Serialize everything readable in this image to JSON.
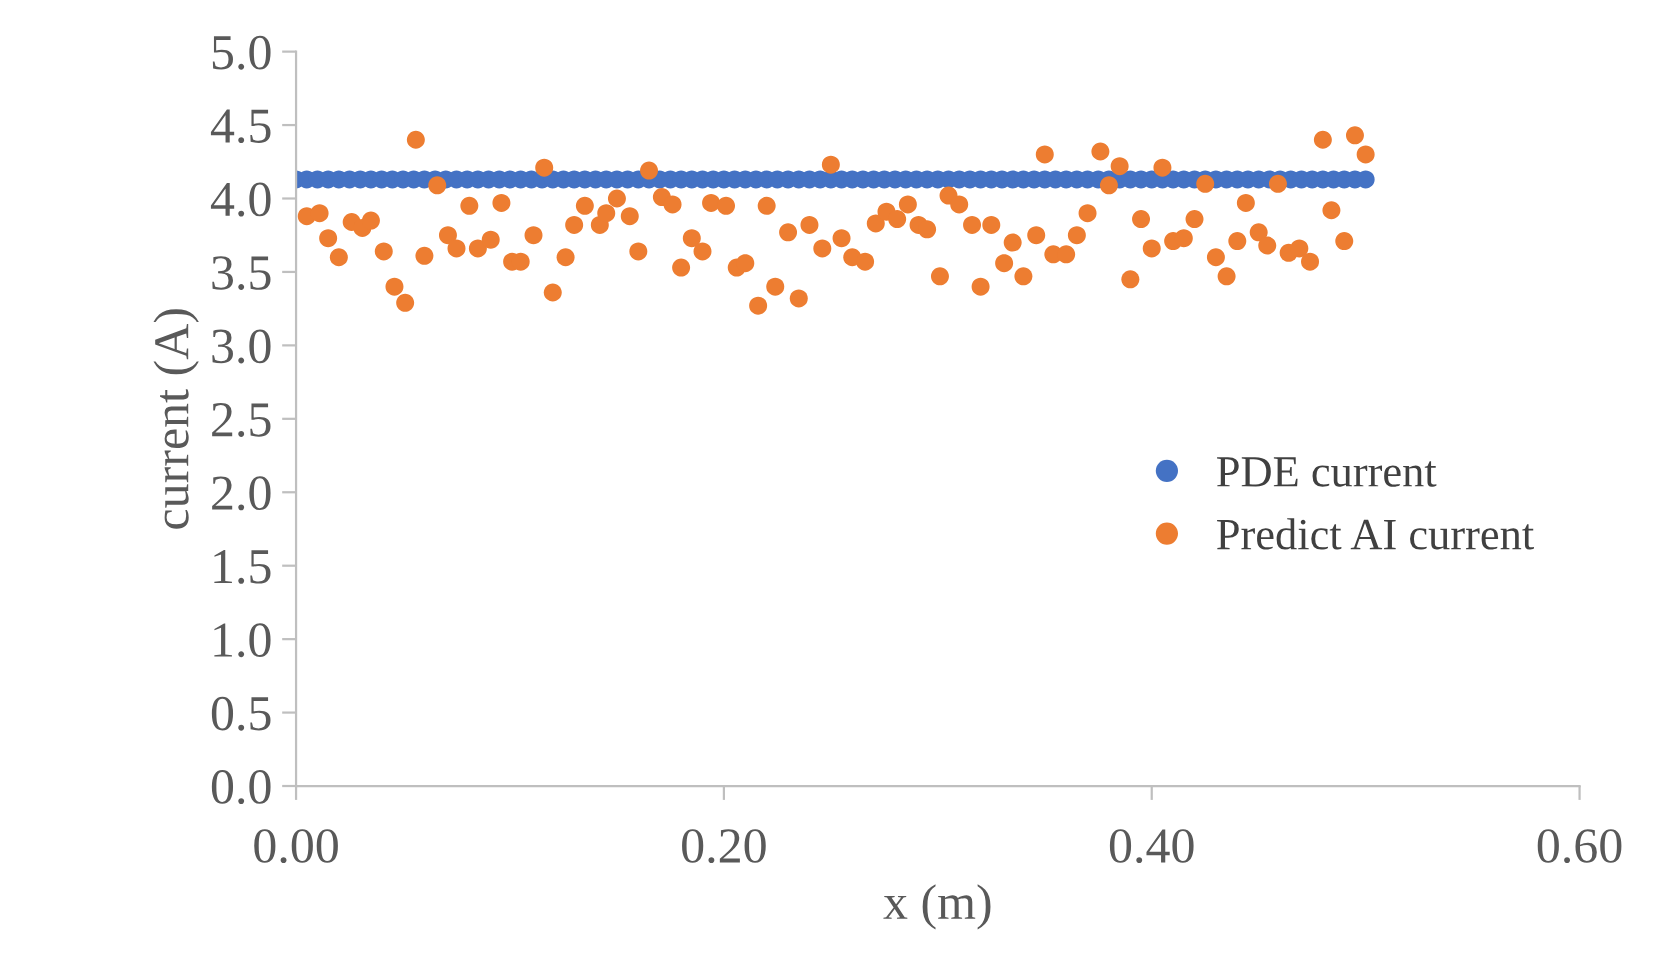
{
  "chart_data": {
    "type": "scatter",
    "xlabel": "x (m)",
    "ylabel": "current (A)",
    "xlim": [
      0,
      0.6
    ],
    "xticks": [
      {
        "value": 0,
        "label": "0.00"
      },
      {
        "value": 0.2,
        "label": "0.20"
      },
      {
        "value": 0.4,
        "label": "0.40"
      },
      {
        "value": 0.6,
        "label": "0.60"
      }
    ],
    "ylim": [
      0,
      5
    ],
    "yticks": [
      {
        "value": 0,
        "label": "0.0"
      },
      {
        "value": 0.5,
        "label": "0.5"
      },
      {
        "value": 1,
        "label": "1.0"
      },
      {
        "value": 1.5,
        "label": "1.5"
      },
      {
        "value": 2,
        "label": "2.0"
      },
      {
        "value": 2.5,
        "label": "2.5"
      },
      {
        "value": 3,
        "label": "3.0"
      },
      {
        "value": 3.5,
        "label": "3.5"
      },
      {
        "value": 4,
        "label": "4.0"
      },
      {
        "value": 4.5,
        "label": "4.5"
      },
      {
        "value": 5,
        "label": "5.0"
      }
    ],
    "grid": false,
    "legend": "right",
    "marker": "circle",
    "series": [
      {
        "name": "PDE current",
        "color": "#4472c4",
        "x": [
          0,
          0.005,
          0.01,
          0.015,
          0.02,
          0.025,
          0.03,
          0.035,
          0.04,
          0.045,
          0.05,
          0.055,
          0.06,
          0.065,
          0.07,
          0.075,
          0.08,
          0.085,
          0.09,
          0.095,
          0.1,
          0.105,
          0.11,
          0.115,
          0.12,
          0.125,
          0.13,
          0.135,
          0.14,
          0.145,
          0.15,
          0.155,
          0.16,
          0.165,
          0.17,
          0.175,
          0.18,
          0.185,
          0.19,
          0.195,
          0.2,
          0.205,
          0.21,
          0.215,
          0.22,
          0.225,
          0.23,
          0.235,
          0.24,
          0.245,
          0.25,
          0.255,
          0.26,
          0.265,
          0.27,
          0.275,
          0.28,
          0.285,
          0.29,
          0.295,
          0.3,
          0.305,
          0.31,
          0.315,
          0.32,
          0.325,
          0.33,
          0.335,
          0.34,
          0.345,
          0.35,
          0.355,
          0.36,
          0.365,
          0.37,
          0.375,
          0.38,
          0.385,
          0.39,
          0.395,
          0.4,
          0.405,
          0.41,
          0.415,
          0.42,
          0.425,
          0.43,
          0.435,
          0.44,
          0.445,
          0.45,
          0.455,
          0.46,
          0.465,
          0.47,
          0.475,
          0.48,
          0.485,
          0.49,
          0.495,
          0.5
        ],
        "values": [
          4.13,
          4.13,
          4.13,
          4.13,
          4.13,
          4.13,
          4.13,
          4.13,
          4.13,
          4.13,
          4.13,
          4.13,
          4.13,
          4.13,
          4.13,
          4.13,
          4.13,
          4.13,
          4.13,
          4.13,
          4.13,
          4.13,
          4.13,
          4.13,
          4.13,
          4.13,
          4.13,
          4.13,
          4.13,
          4.13,
          4.13,
          4.13,
          4.13,
          4.13,
          4.13,
          4.13,
          4.13,
          4.13,
          4.13,
          4.13,
          4.13,
          4.13,
          4.13,
          4.13,
          4.13,
          4.13,
          4.13,
          4.13,
          4.13,
          4.13,
          4.13,
          4.13,
          4.13,
          4.13,
          4.13,
          4.13,
          4.13,
          4.13,
          4.13,
          4.13,
          4.13,
          4.13,
          4.13,
          4.13,
          4.13,
          4.13,
          4.13,
          4.13,
          4.13,
          4.13,
          4.13,
          4.13,
          4.13,
          4.13,
          4.13,
          4.13,
          4.13,
          4.13,
          4.13,
          4.13,
          4.13,
          4.13,
          4.13,
          4.13,
          4.13,
          4.13,
          4.13,
          4.13,
          4.13,
          4.13,
          4.13,
          4.13,
          4.13,
          4.13,
          4.13,
          4.13,
          4.13,
          4.13,
          4.13,
          4.13,
          4.13
        ]
      },
      {
        "name": "Predict AI current",
        "color": "#ed7d31",
        "x": [
          0.005,
          0.011,
          0.015,
          0.02,
          0.026,
          0.031,
          0.035,
          0.041,
          0.046,
          0.051,
          0.056,
          0.06,
          0.066,
          0.071,
          0.075,
          0.081,
          0.085,
          0.091,
          0.096,
          0.101,
          0.105,
          0.111,
          0.116,
          0.12,
          0.126,
          0.13,
          0.135,
          0.142,
          0.145,
          0.15,
          0.156,
          0.16,
          0.165,
          0.171,
          0.176,
          0.18,
          0.185,
          0.19,
          0.194,
          0.201,
          0.206,
          0.21,
          0.216,
          0.22,
          0.224,
          0.23,
          0.235,
          0.24,
          0.246,
          0.25,
          0.255,
          0.26,
          0.266,
          0.271,
          0.276,
          0.281,
          0.286,
          0.291,
          0.295,
          0.301,
          0.305,
          0.31,
          0.316,
          0.32,
          0.325,
          0.331,
          0.335,
          0.34,
          0.346,
          0.35,
          0.354,
          0.36,
          0.365,
          0.37,
          0.376,
          0.38,
          0.385,
          0.39,
          0.395,
          0.4,
          0.405,
          0.41,
          0.415,
          0.42,
          0.425,
          0.43,
          0.435,
          0.44,
          0.444,
          0.45,
          0.454,
          0.459,
          0.464,
          0.469,
          0.474,
          0.48,
          0.484,
          0.49,
          0.495,
          0.5
        ],
        "values": [
          3.88,
          3.9,
          3.73,
          3.6,
          3.84,
          3.8,
          3.85,
          3.64,
          3.4,
          3.29,
          4.4,
          3.61,
          4.09,
          3.75,
          3.66,
          3.95,
          3.66,
          3.72,
          3.97,
          3.57,
          3.57,
          3.75,
          4.21,
          3.36,
          3.6,
          3.82,
          3.95,
          3.82,
          3.9,
          4.0,
          3.88,
          3.64,
          4.19,
          4.01,
          3.96,
          3.53,
          3.73,
          3.64,
          3.97,
          3.95,
          3.53,
          3.56,
          3.27,
          3.95,
          3.4,
          3.77,
          3.32,
          3.82,
          3.66,
          4.23,
          3.73,
          3.6,
          3.57,
          3.83,
          3.91,
          3.86,
          3.96,
          3.82,
          3.79,
          3.47,
          4.02,
          3.96,
          3.82,
          3.4,
          3.82,
          3.56,
          3.7,
          3.47,
          3.75,
          4.3,
          3.62,
          3.62,
          3.75,
          3.9,
          4.32,
          4.09,
          4.22,
          3.45,
          3.86,
          3.66,
          4.21,
          3.71,
          3.73,
          3.86,
          4.1,
          3.6,
          3.47,
          3.71,
          3.97,
          3.77,
          3.68,
          4.1,
          3.63,
          3.66,
          3.57,
          4.4,
          3.92,
          3.71,
          4.43,
          4.3
        ]
      }
    ]
  }
}
